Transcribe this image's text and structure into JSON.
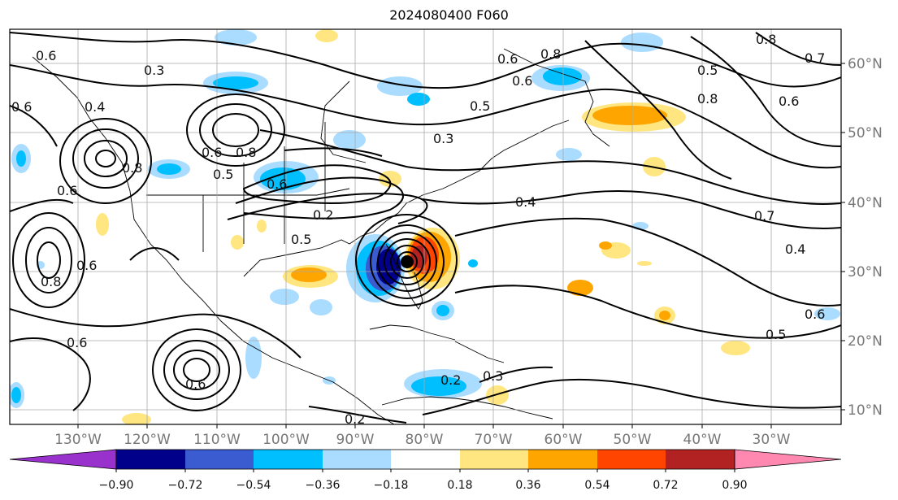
{
  "title": "2024080400 F060",
  "longitude_labels": [
    "130°W",
    "120°W",
    "110°W",
    "100°W",
    "90°W",
    "80°W",
    "70°W",
    "60°W",
    "50°W",
    "40°W",
    "30°W"
  ],
  "latitude_labels": [
    "60°N",
    "50°N",
    "40°N",
    "30°N",
    "20°N",
    "10°N"
  ],
  "colorbar": {
    "colors": [
      "#9932cc",
      "#00008b",
      "#3b5bd0",
      "#00bfff",
      "#aadcff",
      "#ffffff",
      "#ffe680",
      "#ffa500",
      "#ff4500",
      "#b22222",
      "#ff88b0"
    ],
    "ticks": [
      "−0.90",
      "−0.72",
      "−0.54",
      "−0.36",
      "−0.18",
      "0.18",
      "0.36",
      "0.54",
      "0.72",
      "0.90"
    ]
  },
  "contour_labels": [
    "0.6",
    "0.3",
    "0.4",
    "0.8",
    "0.6",
    "0.5",
    "0.8",
    "0.6",
    "0.6",
    "0.8",
    "0.3",
    "0.4",
    "0.6",
    "0.5",
    "0.8",
    "0.6",
    "0.5",
    "0.8",
    "0.7",
    "0.7",
    "0.4",
    "0.5",
    "0.6",
    "0.6",
    "0.8",
    "0.6",
    "0.6",
    "0.2",
    "0.3",
    "0.2",
    "0.2",
    "0.5",
    "0.6",
    "0.6"
  ]
}
